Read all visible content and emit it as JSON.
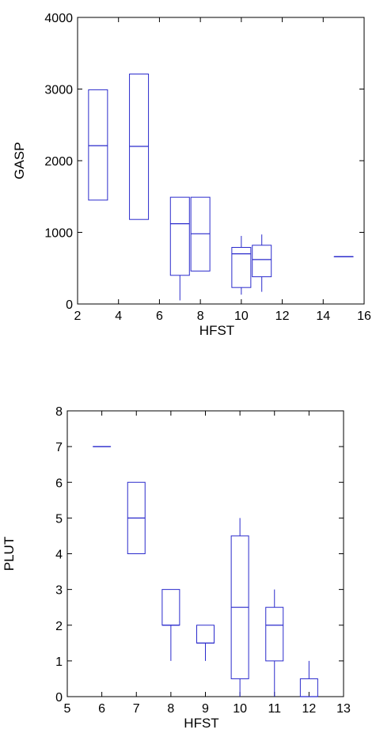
{
  "chart_data": [
    {
      "type": "box",
      "xlabel": "HFST",
      "ylabel": "GASP",
      "xlim": [
        2,
        16
      ],
      "ylim": [
        0,
        4000
      ],
      "xticks": [
        2,
        4,
        6,
        8,
        10,
        12,
        14,
        16
      ],
      "yticks": [
        0,
        1000,
        2000,
        3000,
        4000
      ],
      "boxes": [
        {
          "x": 3,
          "min": 1450,
          "q1": 1450,
          "median": 2210,
          "q3": 2990,
          "max": 2990
        },
        {
          "x": 5,
          "min": 1180,
          "q1": 1180,
          "median": 2200,
          "q3": 3210,
          "max": 3210
        },
        {
          "x": 7,
          "min": 50,
          "q1": 400,
          "median": 1120,
          "q3": 1490,
          "max": 1490
        },
        {
          "x": 8,
          "min": 460,
          "q1": 460,
          "median": 980,
          "q3": 1490,
          "max": 1490
        },
        {
          "x": 10,
          "min": 130,
          "q1": 230,
          "median": 700,
          "q3": 790,
          "max": 950
        },
        {
          "x": 11,
          "min": 170,
          "q1": 380,
          "median": 620,
          "q3": 820,
          "max": 970
        },
        {
          "x": 15,
          "min": 660,
          "q1": 660,
          "median": 660,
          "q3": 660,
          "max": 660
        }
      ]
    },
    {
      "type": "box",
      "xlabel": "HFST",
      "ylabel": "PLUT",
      "xlim": [
        5,
        13
      ],
      "ylim": [
        0,
        8
      ],
      "xticks": [
        5,
        6,
        7,
        8,
        9,
        10,
        11,
        12,
        13
      ],
      "yticks": [
        0,
        1,
        2,
        3,
        4,
        5,
        6,
        7,
        8
      ],
      "boxes": [
        {
          "x": 6,
          "min": 7,
          "q1": 7,
          "median": 7,
          "q3": 7,
          "max": 7
        },
        {
          "x": 7,
          "min": 4,
          "q1": 4,
          "median": 5,
          "q3": 6,
          "max": 6
        },
        {
          "x": 8,
          "min": 1,
          "q1": 2,
          "median": 2,
          "q3": 3,
          "max": 3
        },
        {
          "x": 9,
          "min": 1,
          "q1": 1.5,
          "median": 1.5,
          "q3": 2,
          "max": 2
        },
        {
          "x": 10,
          "min": 0,
          "q1": 0.5,
          "median": 2.5,
          "q3": 4.5,
          "max": 5
        },
        {
          "x": 11,
          "min": 0,
          "q1": 1,
          "median": 2,
          "q3": 2.5,
          "max": 3
        },
        {
          "x": 12,
          "min": 0,
          "q1": 0,
          "median": 0,
          "q3": 0.5,
          "max": 1
        }
      ]
    }
  ]
}
